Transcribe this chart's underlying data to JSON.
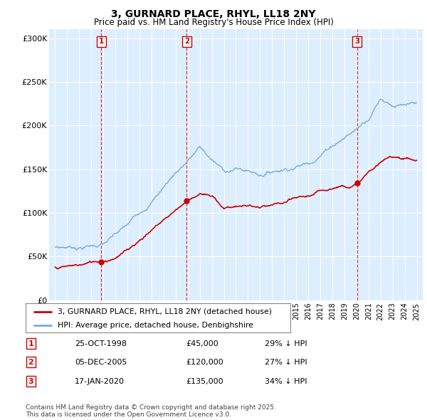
{
  "title": "3, GURNARD PLACE, RHYL, LL18 2NY",
  "subtitle": "Price paid vs. HM Land Registry's House Price Index (HPI)",
  "background_color": "#ffffff",
  "plot_bg_color": "#ddeeff",
  "grid_color": "#ffffff",
  "hpi_color": "#77aadd",
  "price_color": "#cc0000",
  "vline_color": "#dd2222",
  "transactions": [
    {
      "num": 1,
      "date_label": "25-OCT-1998",
      "x": 1998.82,
      "price": 45000,
      "pct": "29%",
      "dir": "↓"
    },
    {
      "num": 2,
      "date_label": "05-DEC-2005",
      "x": 2005.92,
      "price": 120000,
      "pct": "27%",
      "dir": "↓"
    },
    {
      "num": 3,
      "date_label": "17-JAN-2020",
      "x": 2020.05,
      "price": 135000,
      "pct": "34%",
      "dir": "↓"
    }
  ],
  "legend_entries": [
    "3, GURNARD PLACE, RHYL, LL18 2NY (detached house)",
    "HPI: Average price, detached house, Denbighshire"
  ],
  "footer": "Contains HM Land Registry data © Crown copyright and database right 2025.\nThis data is licensed under the Open Government Licence v3.0.",
  "xlim": [
    1994.5,
    2025.5
  ],
  "ylim": [
    0,
    310000
  ],
  "yticks": [
    0,
    50000,
    100000,
    150000,
    200000,
    250000,
    300000
  ],
  "ytick_labels": [
    "£0",
    "£50K",
    "£100K",
    "£150K",
    "£200K",
    "£250K",
    "£300K"
  ]
}
